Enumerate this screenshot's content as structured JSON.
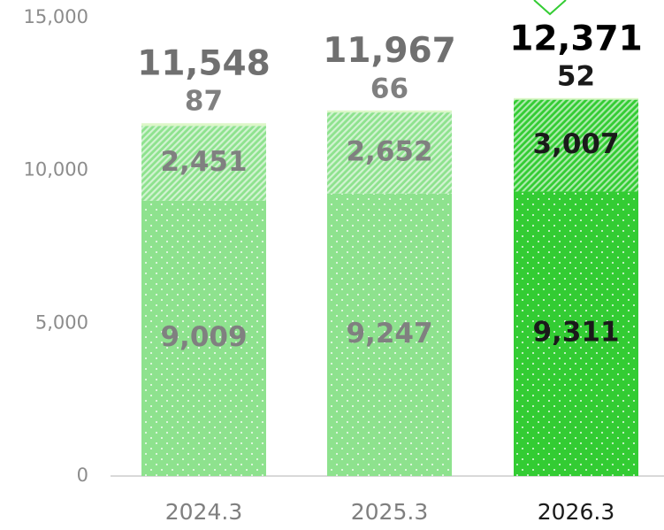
{
  "chart_data": {
    "type": "stacked_bar",
    "categories": [
      "2024.3",
      "2025.3",
      "2026.3"
    ],
    "series": [
      {
        "colors": [
          "#8ee28e",
          "#8ee28e",
          "#33cc33"
        ],
        "values": [
          9009,
          9247,
          9311
        ],
        "value_labels": [
          "9,009",
          "9,247",
          "9,311"
        ]
      },
      {
        "colors": [
          "#8ee28e",
          "#8ee28e",
          "#33cc33"
        ],
        "values": [
          2451,
          2652,
          3007
        ],
        "value_labels": [
          "2,451",
          "2,652",
          "3,007"
        ]
      },
      {
        "colors": [
          "#ddf7c8",
          "#ddf7c8",
          "#ddf7c8"
        ],
        "values": [
          87,
          66,
          52
        ],
        "value_labels": [
          "87",
          "66",
          "52"
        ]
      }
    ],
    "totals": {
      "values": [
        11548,
        11967,
        12371
      ],
      "value_labels": [
        "11,548",
        "11,967",
        "12,371"
      ]
    },
    "highlight_index": 2,
    "ylim": [
      0,
      15000
    ],
    "yticks": [
      0,
      {
        "value": 5000,
        "label": "5,000"
      },
      {
        "value": 10000,
        "label": "10,000"
      },
      {
        "value": 15000,
        "label": "15,000"
      }
    ]
  }
}
